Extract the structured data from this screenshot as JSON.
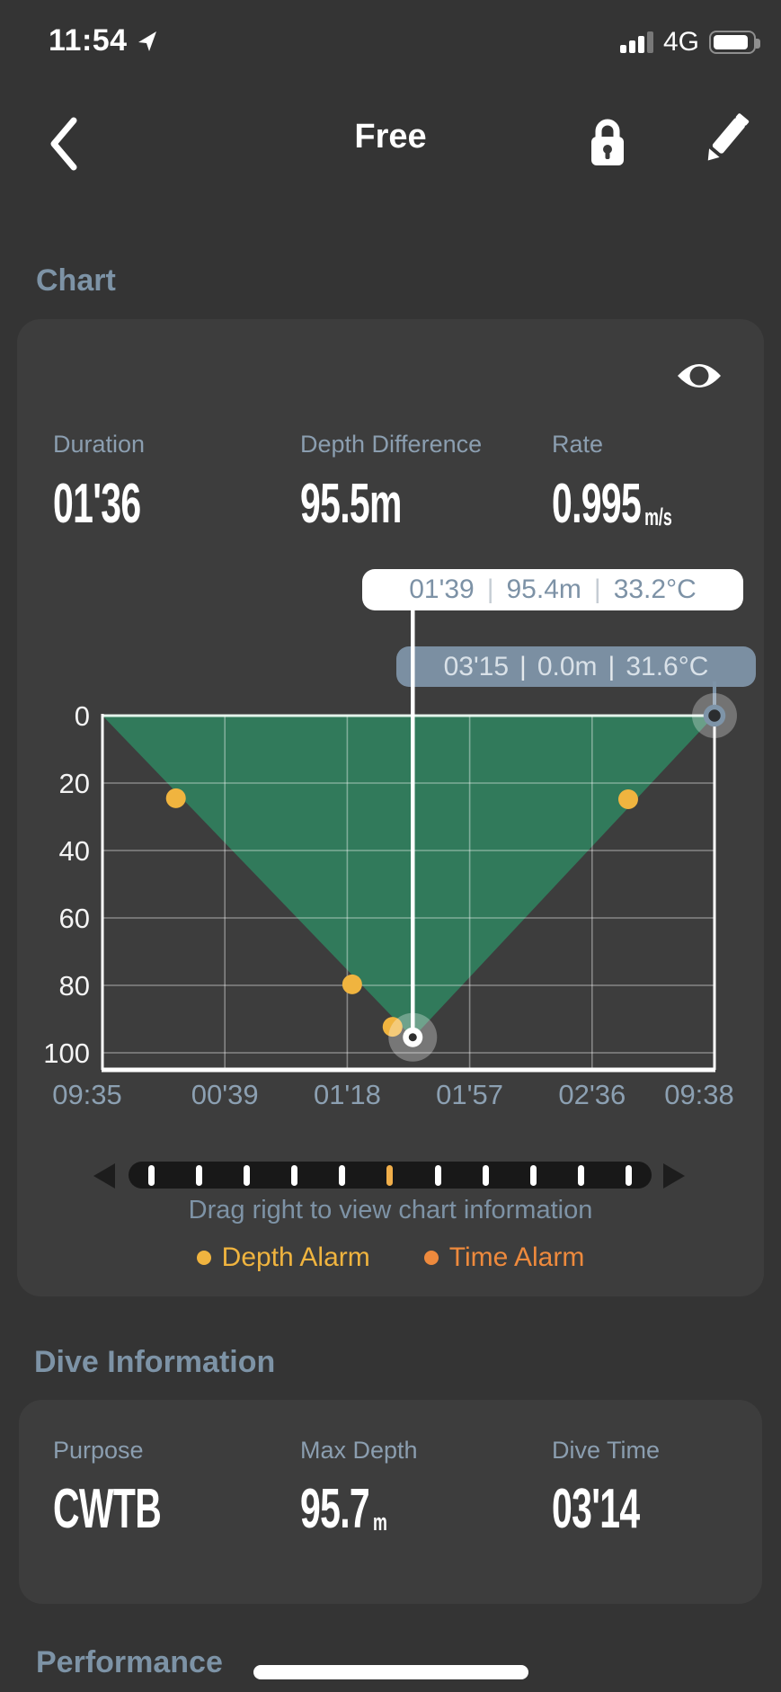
{
  "status_bar": {
    "time": "11:54",
    "network": "4G"
  },
  "nav": {
    "title": "Free"
  },
  "sections": {
    "chart": "Chart",
    "dive_information": "Dive Information",
    "performance": "Performance"
  },
  "chart_card": {
    "stats": [
      {
        "label": "Duration",
        "value": "01'36",
        "unit": ""
      },
      {
        "label": "Depth Difference",
        "value": "95.5m",
        "unit": ""
      },
      {
        "label": "Rate",
        "value": "0.995",
        "unit": "m/s"
      }
    ],
    "tooltip_primary": {
      "time": "01'39",
      "depth": "95.4m",
      "temp": "33.2°C"
    },
    "tooltip_secondary": {
      "time": "03'15",
      "depth": "0.0m",
      "temp": "31.6°C"
    },
    "hint": "Drag right to view chart information",
    "legend": [
      {
        "label": "Depth Alarm",
        "color": "#f0b43f"
      },
      {
        "label": "Time Alarm",
        "color": "#ee8a3d"
      }
    ]
  },
  "chart_data": {
    "type": "area",
    "x_ticks": [
      "09:35",
      "00'39",
      "01'18",
      "01'57",
      "02'36",
      "09:38"
    ],
    "y_ticks": [
      "0",
      "20",
      "40",
      "60",
      "80",
      "100"
    ],
    "ylim": [
      0,
      105
    ],
    "profile": [
      [
        0,
        0
      ],
      [
        0.507,
        95.6
      ],
      [
        1,
        0
      ]
    ],
    "depth_alarm_points": [
      [
        0.12,
        24.5
      ],
      [
        0.408,
        79.7
      ],
      [
        0.474,
        92.3
      ],
      [
        0.859,
        24.8
      ]
    ],
    "cursor": {
      "x": 0.507,
      "depth": 95.4
    },
    "end_marker": {
      "x": 1.0,
      "depth": 0
    },
    "fill_color": "#317a5b",
    "legend_position": "bottom"
  },
  "slider": {
    "tick_count": 11,
    "active_index": 5
  },
  "dive_info": {
    "stats": [
      {
        "label": "Purpose",
        "value": "CWTB",
        "unit": ""
      },
      {
        "label": "Max Depth",
        "value": "95.7",
        "unit": "m"
      },
      {
        "label": "Dive Time",
        "value": "03'14",
        "unit": ""
      }
    ]
  },
  "colors": {
    "background": "#343434",
    "card": "#3d3d3d",
    "slate_text": "#7e93a6",
    "profile_fill": "#317a5b",
    "depth_alarm": "#f0b43f",
    "time_alarm": "#ee8a3d",
    "tooltip_secondary_bg": "#7e94a8",
    "slider_active_tick": "#f0ae4a"
  }
}
